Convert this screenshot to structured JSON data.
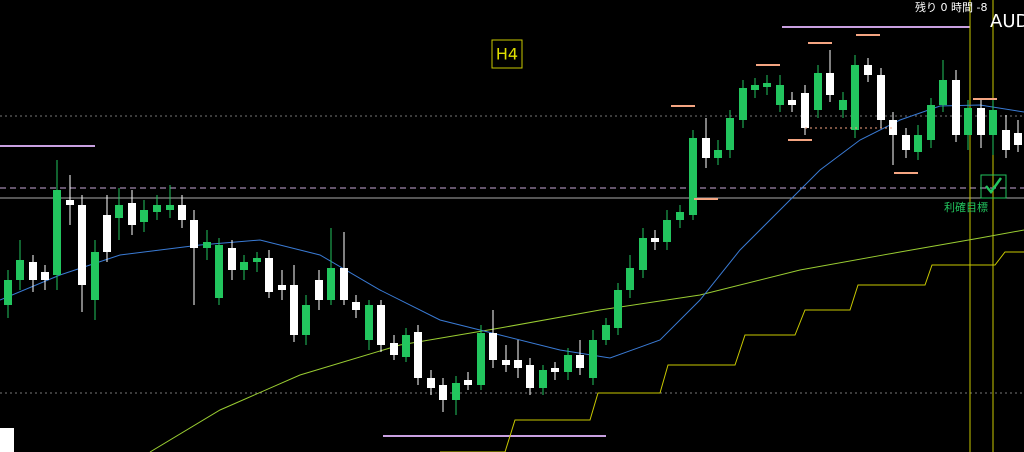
{
  "header": {
    "timeframe": "H4",
    "countdown": "残り 0 時間 -8",
    "symbol": "AUD"
  },
  "annotation": {
    "label": "利確目標"
  }
}
